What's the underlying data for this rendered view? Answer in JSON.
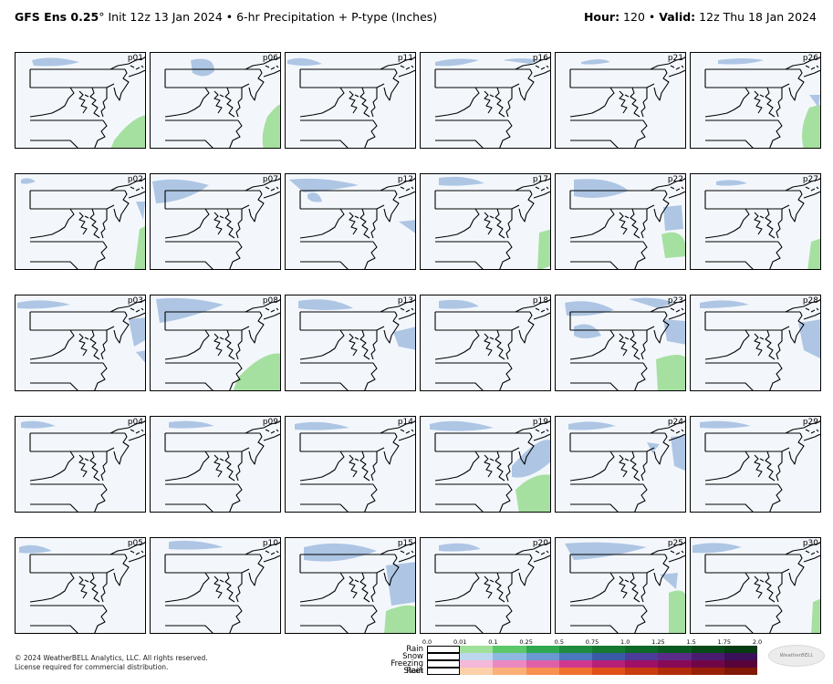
{
  "header": {
    "model": "GFS Ens 0.25",
    "degree": "°",
    "rest": " Init 12z 13 Jan 2024 • 6-hr Precipitation + P-type (Inches)",
    "hour_label": "Hour:",
    "hour": " 120 • ",
    "valid_label": "Valid:",
    "valid": " 12z Thu 18 Jan 2024"
  },
  "panels": [
    "p01",
    "p06",
    "p11",
    "p16",
    "p21",
    "p26",
    "p02",
    "p07",
    "p12",
    "p17",
    "p22",
    "p27",
    "p03",
    "p08",
    "p13",
    "p18",
    "p23",
    "p28",
    "p04",
    "p09",
    "p14",
    "p19",
    "p24",
    "p29",
    "p05",
    "p10",
    "p15",
    "p20",
    "p25",
    "p30"
  ],
  "colors": {
    "snow": "#aec6e4",
    "rain": "#a6e0a0",
    "background": "#f3f7fc",
    "land": "#f3f7fc"
  },
  "legend": {
    "ticks": [
      "0.0",
      "0.01",
      "0.1",
      "0.25",
      "0.5",
      "0.75",
      "1.0",
      "1.25",
      "1.5",
      "1.75",
      "2.0"
    ],
    "types": [
      "Rain",
      "Snow",
      "Freezing Rain",
      "Sleet"
    ],
    "rain_colors": [
      "#ffffff",
      "#9fe09a",
      "#5cc86a",
      "#30a850",
      "#1e8c3c",
      "#157a30",
      "#0e6828",
      "#0a5a20",
      "#074a18",
      "#053c12"
    ],
    "snow_colors": [
      "#ffffff",
      "#bcd6ee",
      "#8fb8e0",
      "#6a98d0",
      "#4a78bc",
      "#3a5aa8",
      "#4a3c98",
      "#5a2c88",
      "#4a1c70",
      "#3a1058"
    ],
    "frz_colors": [
      "#ffffff",
      "#f4b8d8",
      "#ec88c0",
      "#e060a8",
      "#d03890",
      "#b82078",
      "#a01066",
      "#880a56",
      "#700648",
      "#58043a"
    ],
    "sleet_colors": [
      "#ffffff",
      "#fcd0a8",
      "#fab078",
      "#f89050",
      "#f07030",
      "#e05018",
      "#c83c10",
      "#b02c0a",
      "#982006",
      "#801804"
    ]
  },
  "footer": {
    "copyright_line1": "© 2024 WeatherBELL Analytics, LLC. All rights reserved.",
    "copyright_line2": "License required for commercial distribution.",
    "logo": "WeatherBELL"
  }
}
